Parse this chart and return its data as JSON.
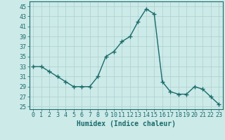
{
  "x": [
    0,
    1,
    2,
    3,
    4,
    5,
    6,
    7,
    8,
    9,
    10,
    11,
    12,
    13,
    14,
    15,
    16,
    17,
    18,
    19,
    20,
    21,
    22,
    23
  ],
  "y": [
    33,
    33,
    32,
    31,
    30,
    29,
    29,
    29,
    31,
    35,
    36,
    38,
    39,
    42,
    44.5,
    43.5,
    30,
    28,
    27.5,
    27.5,
    29,
    28.5,
    27,
    25.5
  ],
  "line_color": "#1a6b6b",
  "marker": "+",
  "marker_size": 4,
  "background_color": "#cceae8",
  "grid_color": "#aad0ce",
  "xlabel": "Humidex (Indice chaleur)",
  "xlim": [
    -0.5,
    23.5
  ],
  "ylim": [
    24.5,
    46
  ],
  "yticks": [
    25,
    27,
    29,
    31,
    33,
    35,
    37,
    39,
    41,
    43,
    45
  ],
  "xticks": [
    0,
    1,
    2,
    3,
    4,
    5,
    6,
    7,
    8,
    9,
    10,
    11,
    12,
    13,
    14,
    15,
    16,
    17,
    18,
    19,
    20,
    21,
    22,
    23
  ],
  "xtick_labels": [
    "0",
    "1",
    "2",
    "3",
    "4",
    "5",
    "6",
    "7",
    "8",
    "9",
    "10",
    "11",
    "12",
    "13",
    "14",
    "15",
    "16",
    "17",
    "18",
    "19",
    "20",
    "21",
    "22",
    "23"
  ],
  "font_color": "#1a6b6b",
  "xlabel_fontsize": 7,
  "tick_fontsize": 6,
  "linewidth": 1.0
}
